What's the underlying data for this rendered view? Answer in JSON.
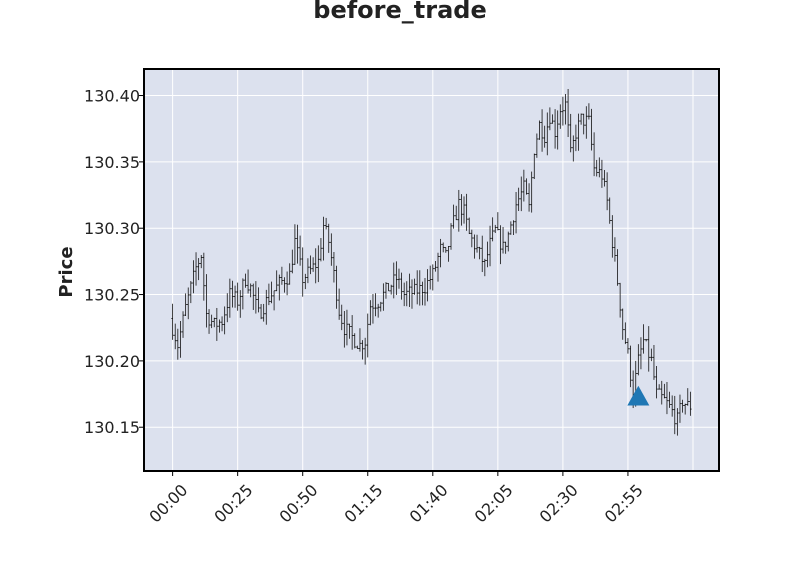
{
  "chart_data": {
    "type": "ohlc",
    "title": "before_trade",
    "xlabel": "",
    "ylabel": "Price",
    "x_tick_labels": [
      "00:00",
      "00:25",
      "00:50",
      "01:15",
      "01:40",
      "02:05",
      "02:30",
      "02:55"
    ],
    "x_tick_minutes": [
      0,
      25,
      50,
      75,
      100,
      125,
      150,
      175
    ],
    "xlim_minutes": [
      -11,
      210
    ],
    "y_ticks": [
      130.15,
      130.2,
      130.25,
      130.3,
      130.35,
      130.4
    ],
    "ylim": [
      130.117,
      130.42
    ],
    "grid": true,
    "colors": {
      "background": "#dce1ee",
      "grid": "#ffffff",
      "bars": "#111111",
      "marker": "#1f77b4"
    },
    "price_path": [
      [
        0,
        130.232
      ],
      [
        3,
        130.212
      ],
      [
        6,
        130.24
      ],
      [
        10,
        130.27
      ],
      [
        12,
        130.28
      ],
      [
        14,
        130.235
      ],
      [
        17,
        130.227
      ],
      [
        20,
        130.23
      ],
      [
        23,
        130.25
      ],
      [
        26,
        130.245
      ],
      [
        29,
        130.262
      ],
      [
        31,
        130.255
      ],
      [
        34,
        130.235
      ],
      [
        38,
        130.248
      ],
      [
        42,
        130.258
      ],
      [
        46,
        130.265
      ],
      [
        48,
        130.29
      ],
      [
        51,
        130.262
      ],
      [
        54,
        130.268
      ],
      [
        57,
        130.275
      ],
      [
        59,
        130.302
      ],
      [
        61,
        130.29
      ],
      [
        63,
        130.265
      ],
      [
        65,
        130.238
      ],
      [
        67,
        130.225
      ],
      [
        70,
        130.218
      ],
      [
        73,
        130.212
      ],
      [
        75,
        130.215
      ],
      [
        77,
        130.242
      ],
      [
        80,
        130.245
      ],
      [
        84,
        130.255
      ],
      [
        87,
        130.262
      ],
      [
        90,
        130.25
      ],
      [
        94,
        130.252
      ],
      [
        98,
        130.256
      ],
      [
        101,
        130.265
      ],
      [
        104,
        130.284
      ],
      [
        106,
        130.278
      ],
      [
        108,
        130.297
      ],
      [
        111,
        130.318
      ],
      [
        113,
        130.312
      ],
      [
        115,
        130.295
      ],
      [
        119,
        130.28
      ],
      [
        121,
        130.272
      ],
      [
        123,
        130.288
      ],
      [
        125,
        130.298
      ],
      [
        128,
        130.285
      ],
      [
        130,
        130.295
      ],
      [
        133,
        130.318
      ],
      [
        136,
        130.33
      ],
      [
        138,
        130.315
      ],
      [
        140,
        130.36
      ],
      [
        142,
        130.378
      ],
      [
        144,
        130.37
      ],
      [
        146,
        130.385
      ],
      [
        148,
        130.373
      ],
      [
        150,
        130.39
      ],
      [
        152,
        130.393
      ],
      [
        154,
        130.355
      ],
      [
        156,
        130.372
      ],
      [
        158,
        130.382
      ],
      [
        161,
        130.38
      ],
      [
        163,
        130.345
      ],
      [
        166,
        130.34
      ],
      [
        168,
        130.32
      ],
      [
        170,
        130.29
      ],
      [
        172,
        130.26
      ],
      [
        174,
        130.225
      ],
      [
        176,
        130.205
      ],
      [
        178,
        130.175
      ],
      [
        180,
        130.2
      ],
      [
        182,
        130.215
      ],
      [
        185,
        130.2
      ],
      [
        187,
        130.175
      ],
      [
        190,
        130.17
      ],
      [
        192,
        130.165
      ],
      [
        195,
        130.155
      ],
      [
        197,
        130.17
      ],
      [
        199,
        130.166
      ],
      [
        200,
        130.166
      ]
    ],
    "bar_count": 200,
    "bar_interval_minutes": 1,
    "noise_seed": 7,
    "annotations": [
      {
        "shape": "triangle-up",
        "x_minute": 179,
        "y": 130.173,
        "color": "#1f77b4"
      }
    ]
  }
}
